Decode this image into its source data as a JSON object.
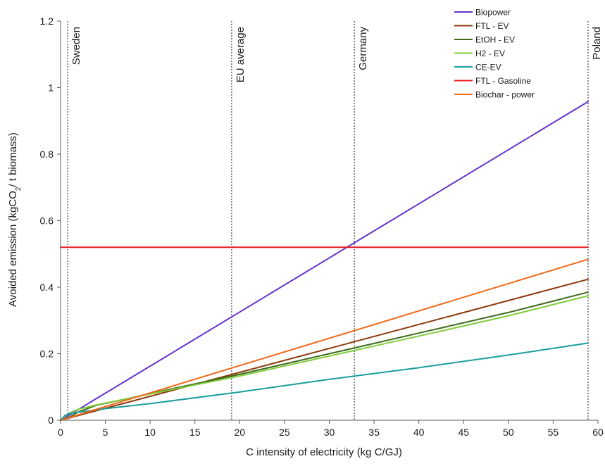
{
  "chart_data": {
    "type": "line",
    "title": "",
    "xlabel": "C intensity of electricity (kg C/GJ)",
    "ylabel": {
      "prefix": "Avoided emission (kgCO",
      "subscript": "2",
      "suffix": "/ t biomass)"
    },
    "xlim": [
      0,
      60
    ],
    "ylim": [
      0,
      1.2
    ],
    "x_ticks": [
      0,
      5,
      10,
      15,
      20,
      25,
      30,
      35,
      40,
      45,
      50,
      55,
      60
    ],
    "x_tick_labels": [
      "0",
      "5",
      "10",
      "15",
      "20",
      "25",
      "30",
      "35",
      "40",
      "45",
      "50",
      "55",
      "60"
    ],
    "y_ticks": [
      0,
      0.2,
      0.4,
      0.6,
      0.8,
      1,
      1.2
    ],
    "y_tick_labels": [
      "0",
      "0.2",
      "0.4",
      "0.6",
      "0.8",
      "1",
      "1.2"
    ],
    "grid": false,
    "legend_position": "top-right",
    "reference_lines": [
      {
        "label": "Sweden",
        "x": 0.8
      },
      {
        "label": "EU average",
        "x": 19.1
      },
      {
        "label": "Germany",
        "x": 32.8
      },
      {
        "label": "Poland",
        "x": 58.9
      }
    ],
    "series": [
      {
        "name": "Biopower",
        "color": "#6633CC",
        "points": [
          [
            0,
            0
          ],
          [
            58.9,
            0.958
          ]
        ]
      },
      {
        "name": "FTL - EV",
        "color": "#8B3A0E",
        "points": [
          [
            0,
            0
          ],
          [
            58.9,
            0.424
          ]
        ]
      },
      {
        "name": "EtOH - EV",
        "color": "#3F6B1E",
        "points": [
          [
            0,
            0
          ],
          [
            1,
            0.01
          ],
          [
            2,
            0.025
          ],
          [
            4,
            0.045
          ],
          [
            8,
            0.068
          ],
          [
            12,
            0.092
          ],
          [
            20,
            0.138
          ],
          [
            30,
            0.2
          ],
          [
            40,
            0.262
          ],
          [
            50,
            0.324
          ],
          [
            58.9,
            0.385
          ]
        ]
      },
      {
        "name": "H2 - EV",
        "color": "#7FCC3A",
        "points": [
          [
            0,
            0
          ],
          [
            0.5,
            0.012
          ],
          [
            1,
            0.022
          ],
          [
            2,
            0.033
          ],
          [
            4,
            0.046
          ],
          [
            8,
            0.068
          ],
          [
            12,
            0.09
          ],
          [
            20,
            0.133
          ],
          [
            30,
            0.193
          ],
          [
            40,
            0.253
          ],
          [
            50,
            0.314
          ],
          [
            58.9,
            0.374
          ]
        ]
      },
      {
        "name": "CE-EV",
        "color": "#1A9E9E",
        "points": [
          [
            0,
            0
          ],
          [
            0.5,
            0.015
          ],
          [
            1,
            0.02
          ],
          [
            2,
            0.024
          ],
          [
            5,
            0.035
          ],
          [
            10,
            0.05
          ],
          [
            20,
            0.085
          ],
          [
            30,
            0.123
          ],
          [
            40,
            0.158
          ],
          [
            50,
            0.196
          ],
          [
            58.9,
            0.232
          ]
        ]
      },
      {
        "name": "FTL - Gasoline",
        "color": "#E8191C",
        "points": [
          [
            0,
            0.52
          ],
          [
            58.9,
            0.52
          ]
        ]
      },
      {
        "name": "Biochar - power",
        "color": "#F26A1B",
        "points": [
          [
            0,
            0
          ],
          [
            58.9,
            0.484
          ]
        ]
      }
    ]
  }
}
